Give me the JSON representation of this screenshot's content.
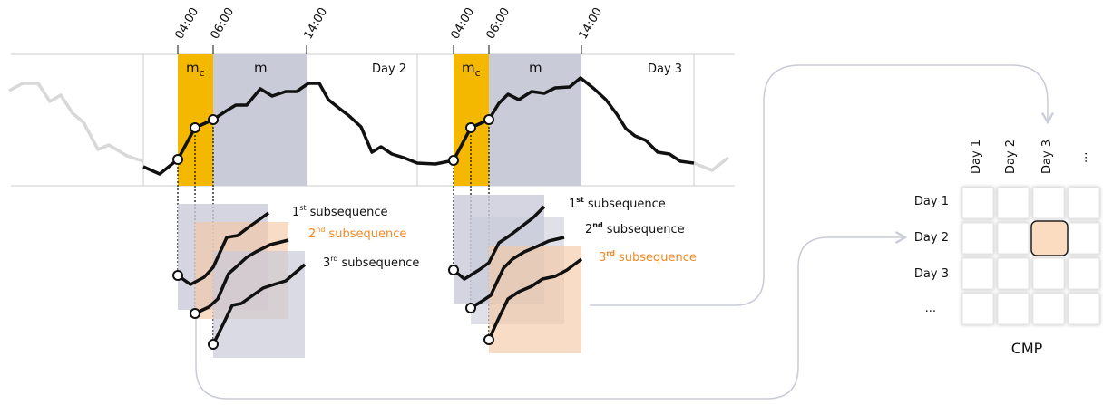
{
  "timeline": [
    {
      "ticks": [
        "04:00",
        "06:00",
        "14:00"
      ],
      "motif_context": {
        "m": "m",
        "sub": "c"
      },
      "motif": "m",
      "day": "Day 2",
      "subsequences": [
        {
          "number": "1",
          "suffix": "st",
          "text": "subsequence"
        },
        {
          "number": "2",
          "suffix": "nd",
          "text": "subsequence"
        },
        {
          "number": "3",
          "suffix": "rd",
          "text": "subsequence"
        }
      ]
    },
    {
      "ticks": [
        "04:00",
        "06:00",
        "14:00"
      ],
      "motif_context": {
        "m": "m",
        "sub": "c"
      },
      "motif": "m",
      "day": "Day 3",
      "subsequences": [
        {
          "number": "1",
          "suffix": "st",
          "text": "subsequence"
        },
        {
          "number": "2",
          "suffix": "nd",
          "text": "subsequence"
        },
        {
          "number": "3",
          "suffix": "rd",
          "text": "subsequence"
        }
      ]
    }
  ],
  "matrix": {
    "columns": [
      "Day 1",
      "Day 2",
      "Day 3",
      "..."
    ],
    "rows": [
      "Day 1",
      "Day 2",
      "Day 3",
      "..."
    ],
    "label": "CMP"
  }
}
